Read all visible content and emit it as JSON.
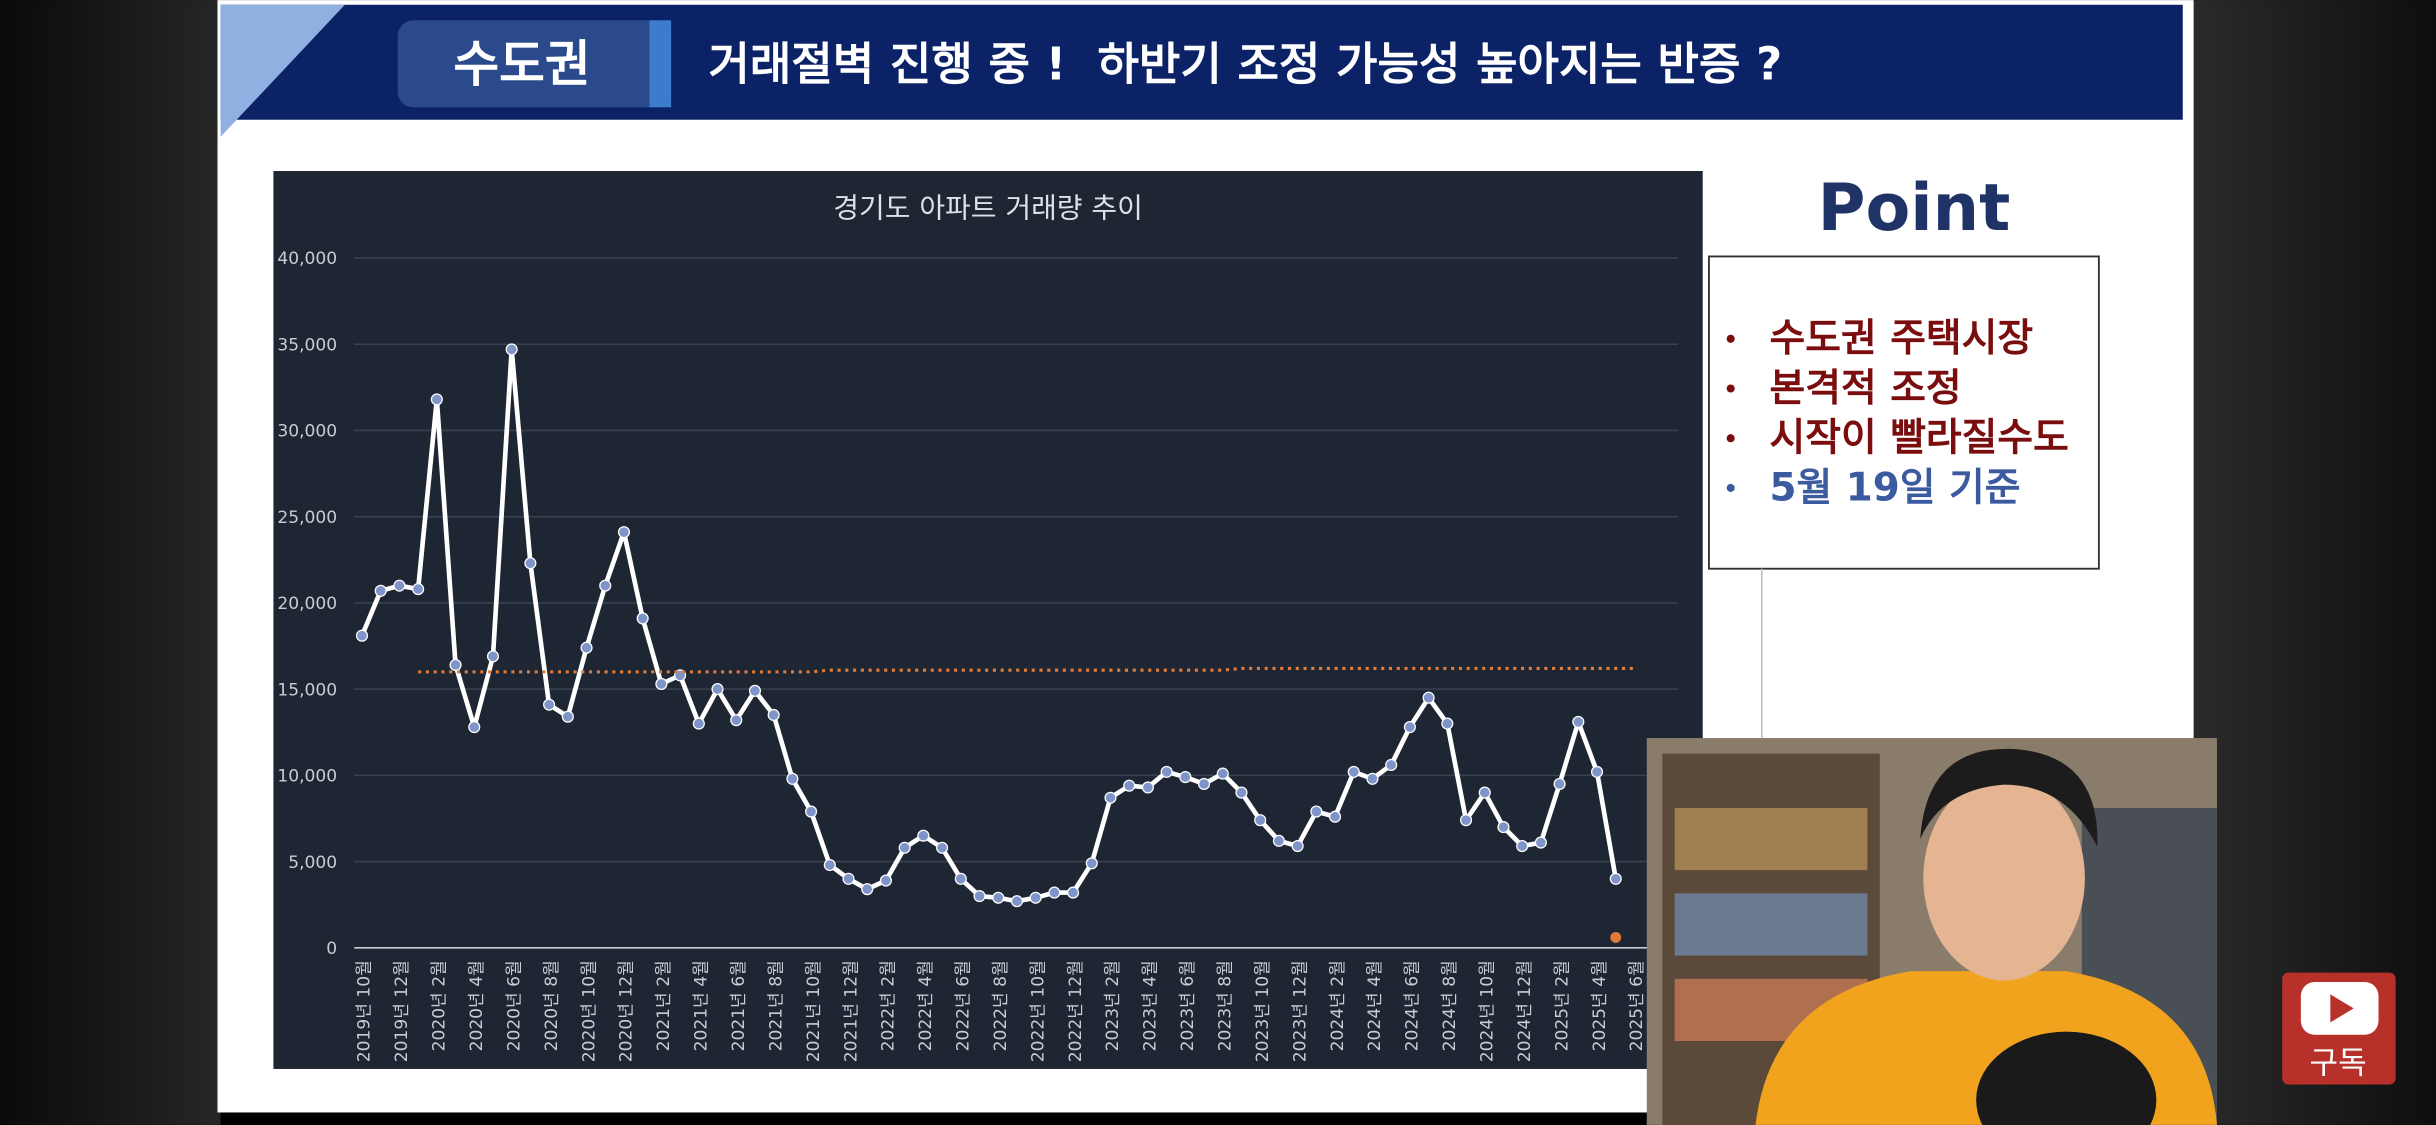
{
  "header": {
    "tag": "수도권",
    "title": "거래절벽 진행 중 !  하반기 조정 가능성 높아지는 반증 ?"
  },
  "chart_data": {
    "type": "line",
    "title": "경기도 아파트 거래량 추이",
    "categories": [
      "2019년 10월",
      null,
      "2019년 12월",
      null,
      "2020년 2월",
      null,
      "2020년 4월",
      null,
      "2020년 6월",
      null,
      "2020년 8월",
      null,
      "2020년 10월",
      null,
      "2020년 12월",
      null,
      "2021년 2월",
      null,
      "2021년 4월",
      null,
      "2021년 6월",
      null,
      "2021년 8월",
      null,
      "2021년 10월",
      null,
      "2021년 12월",
      null,
      "2022년 2월",
      null,
      "2022년 4월",
      null,
      "2022년 6월",
      null,
      "2022년 8월",
      null,
      "2022년 10월",
      null,
      "2022년 12월",
      null,
      "2023년 2월",
      null,
      "2023년 4월",
      null,
      "2023년 6월",
      null,
      "2023년 8월",
      null,
      "2023년 10월",
      null,
      "2023년 12월",
      null,
      "2024년 2월",
      null,
      "2024년 4월",
      null,
      "2024년 6월",
      null,
      "2024년 8월",
      null,
      "2024년 10월",
      null,
      "2024년 12월",
      null,
      "2025년 2월",
      null,
      "2025년 4월",
      null,
      "2025년 6월"
    ],
    "series": [
      {
        "color": "#ffffff",
        "marker_color": "#7f95c9",
        "line": true,
        "markers": true,
        "values": [
          18100,
          20700,
          21000,
          20800,
          31800,
          16400,
          12800,
          16900,
          34700,
          22300,
          14100,
          13400,
          17400,
          21000,
          24100,
          19100,
          15300,
          15800,
          13000,
          15000,
          13200,
          14900,
          13500,
          9800,
          7900,
          4800,
          4000,
          3400,
          3900,
          5800,
          6500,
          5800,
          4000,
          3000,
          2900,
          2700,
          2900,
          3200,
          3200,
          4900,
          8700,
          9400,
          9300,
          10200,
          9900,
          9500,
          10100,
          9000,
          7400,
          6200,
          5900,
          7900,
          7600,
          10200,
          9800,
          10600,
          12800,
          14500,
          13000,
          7400,
          9000,
          7000,
          5900,
          6100,
          9500,
          13100,
          10200,
          4000,
          null
        ]
      },
      {
        "color": "#e07b39",
        "marker_color": "#e07b39",
        "line": false,
        "markers": true,
        "values": [
          null,
          null,
          null,
          null,
          null,
          null,
          null,
          null,
          null,
          null,
          null,
          null,
          null,
          null,
          null,
          null,
          null,
          null,
          null,
          null,
          null,
          null,
          null,
          null,
          null,
          null,
          null,
          null,
          null,
          null,
          null,
          null,
          null,
          null,
          null,
          null,
          null,
          null,
          null,
          null,
          null,
          null,
          null,
          null,
          null,
          null,
          null,
          null,
          null,
          null,
          null,
          null,
          null,
          null,
          null,
          null,
          null,
          null,
          null,
          null,
          null,
          null,
          null,
          null,
          null,
          null,
          null,
          600,
          null
        ]
      },
      {
        "color": "#e07b39",
        "line": true,
        "markers": false,
        "dash": "2 3",
        "values": [
          null,
          null,
          null,
          16000,
          16000,
          16000,
          16000,
          16000,
          16000,
          16000,
          16000,
          16000,
          16000,
          16000,
          16000,
          16000,
          16000,
          16000,
          16000,
          16000,
          16000,
          16000,
          16000,
          16000,
          16000,
          16100,
          16100,
          16100,
          16100,
          16100,
          16100,
          16100,
          16100,
          16100,
          16100,
          16100,
          16100,
          16100,
          16100,
          16100,
          16100,
          16100,
          16100,
          16100,
          16100,
          16100,
          16100,
          16200,
          16200,
          16200,
          16200,
          16200,
          16200,
          16200,
          16200,
          16200,
          16200,
          16200,
          16200,
          16200,
          16200,
          16200,
          16200,
          16200,
          16200,
          16200,
          16200,
          16200,
          16200
        ]
      }
    ],
    "ylim": [
      0,
      40000
    ],
    "yticks": [
      0,
      {
        "value": 5000,
        "label": "5,000"
      },
      {
        "value": 10000,
        "label": "10,000"
      },
      {
        "value": 15000,
        "label": "15,000"
      },
      {
        "value": 20000,
        "label": "20,000"
      },
      {
        "value": 25000,
        "label": "25,000"
      },
      {
        "value": 30000,
        "label": "30,000"
      },
      {
        "value": 35000,
        "label": "35,000"
      },
      {
        "value": 40000,
        "label": "40,000"
      }
    ],
    "grid": true
  },
  "point": {
    "title": "Point",
    "items": [
      "수도권 주택시장",
      "본격적 조정",
      "시작이 빨라질수도",
      "5월  19일 기준"
    ]
  },
  "subscribe": "구독"
}
